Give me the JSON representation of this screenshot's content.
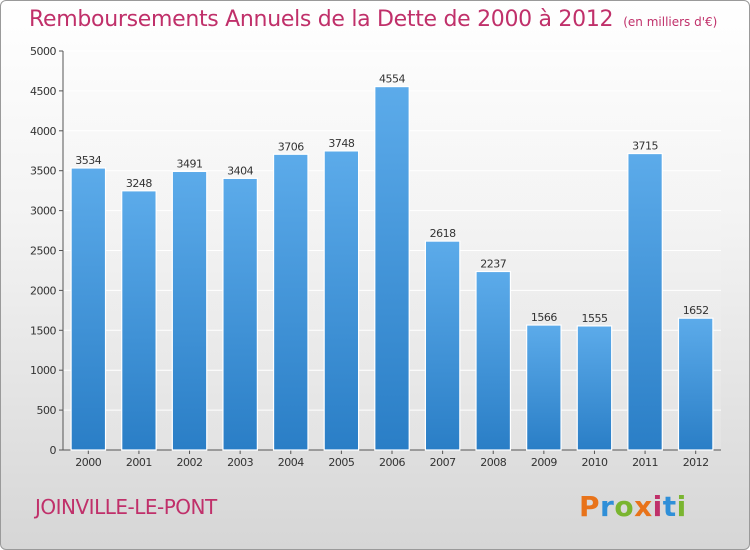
{
  "header": {
    "title": "Remboursements Annuels de la Dette de 2000 à 2012",
    "unit": "(en milliers d'€)"
  },
  "footer": {
    "city": "JOINVILLE-LE-PONT",
    "logo_text": "Proxiti",
    "logo_colors": [
      "#e8731a",
      "#2f8fd8",
      "#7ab530",
      "#e8731a",
      "#c0306a",
      "#2f8fd8",
      "#7ab530"
    ]
  },
  "colors": {
    "bar_top": "#5cabea",
    "bar_bottom": "#2a7ec6",
    "title": "#c0306a"
  },
  "chart_data": {
    "type": "bar",
    "title": "Remboursements Annuels de la Dette de 2000 à 2012",
    "xlabel": "",
    "ylabel": "",
    "categories": [
      "2000",
      "2001",
      "2002",
      "2003",
      "2004",
      "2005",
      "2006",
      "2007",
      "2008",
      "2009",
      "2010",
      "2011",
      "2012"
    ],
    "values": [
      3534,
      3248,
      3491,
      3404,
      3706,
      3748,
      4554,
      2618,
      2237,
      1566,
      1555,
      3715,
      1652
    ],
    "ylim": [
      0,
      5000
    ],
    "yticks": [
      0,
      500,
      1000,
      1500,
      2000,
      2500,
      3000,
      3500,
      4000,
      4500,
      5000
    ],
    "grid": true,
    "legend": "none"
  }
}
